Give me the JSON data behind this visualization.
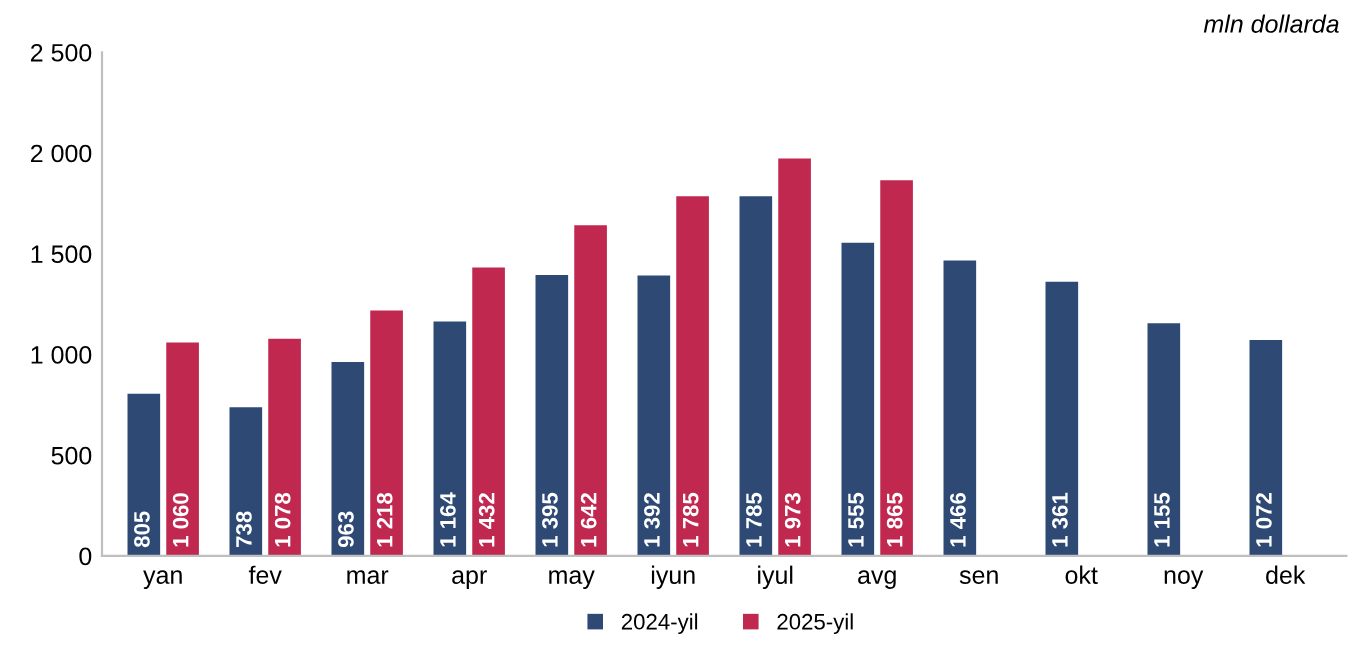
{
  "chart_data": {
    "type": "bar",
    "categories": [
      "yan",
      "fev",
      "mar",
      "apr",
      "may",
      "iyun",
      "iyul",
      "avg",
      "sen",
      "okt",
      "noy",
      "dek"
    ],
    "series": [
      {
        "name": "2024-yil",
        "color": "#2e4a74",
        "values": [
          805,
          738,
          963,
          1164,
          1395,
          1392,
          1785,
          1555,
          1466,
          1361,
          1155,
          1072
        ],
        "value_labels": [
          "805",
          "738",
          "963",
          "1 164",
          "1 395",
          "1 392",
          "1 785",
          "1 555",
          "1 466",
          "1 361",
          "1 155",
          "1 072"
        ]
      },
      {
        "name": "2025-yil",
        "color": "#c0284f",
        "values": [
          1060,
          1078,
          1218,
          1432,
          1642,
          1785,
          1973,
          1865,
          null,
          null,
          null,
          null
        ],
        "value_labels": [
          "1 060",
          "1 078",
          "1 218",
          "1 432",
          "1 642",
          "1 785",
          "1 973",
          "1 865",
          null,
          null,
          null,
          null
        ]
      }
    ],
    "ylim": [
      0,
      2500
    ],
    "yticks": [
      0,
      500,
      {
        "value": 1000,
        "label": "1 000"
      },
      {
        "value": 1500,
        "label": "1 500"
      },
      {
        "value": 2000,
        "label": "2 000"
      },
      {
        "value": 2500,
        "label": "2 500"
      }
    ],
    "annotations": [
      "mln dollarda"
    ],
    "legend": "bottom",
    "grid": false
  }
}
